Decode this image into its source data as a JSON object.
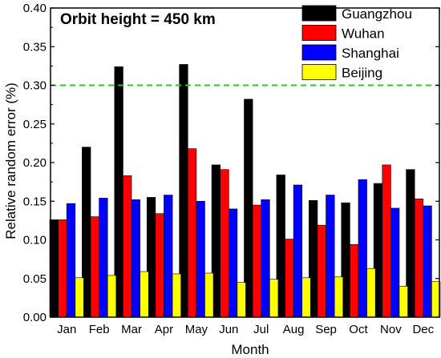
{
  "chart_data": {
    "type": "bar",
    "annotation": "Orbit height = 450 km",
    "xlabel": "Month",
    "ylabel": "Relative random error (%)",
    "categories": [
      "Jan",
      "Feb",
      "Mar",
      "Apr",
      "May",
      "Jun",
      "Jul",
      "Aug",
      "Sep",
      "Oct",
      "Nov",
      "Dec"
    ],
    "ylim": [
      0,
      0.4
    ],
    "yticks": [
      "0.00",
      "0.05",
      "0.10",
      "0.15",
      "0.20",
      "0.25",
      "0.30",
      "0.35",
      "0.40"
    ],
    "series": [
      {
        "name": "Guangzhou",
        "color": "#000000",
        "values": [
          0.126,
          0.22,
          0.324,
          0.155,
          0.327,
          0.197,
          0.282,
          0.184,
          0.151,
          0.148,
          0.173,
          0.191
        ]
      },
      {
        "name": "Wuhan",
        "color": "#ff0000",
        "values": [
          0.126,
          0.13,
          0.183,
          0.134,
          0.218,
          0.191,
          0.145,
          0.101,
          0.119,
          0.094,
          0.197,
          0.153
        ]
      },
      {
        "name": "Shanghai",
        "color": "#0000ff",
        "values": [
          0.147,
          0.154,
          0.152,
          0.158,
          0.15,
          0.14,
          0.152,
          0.171,
          0.158,
          0.178,
          0.141,
          0.144
        ]
      },
      {
        "name": "Beijing",
        "color": "#ffff00",
        "values": [
          0.051,
          0.054,
          0.059,
          0.056,
          0.057,
          0.045,
          0.049,
          0.051,
          0.052,
          0.063,
          0.04,
          0.046
        ]
      }
    ],
    "reference_line": {
      "value": 0.3,
      "color": "#22cc22",
      "style": "dashed"
    },
    "legend_position": "top-right",
    "grid": false
  }
}
